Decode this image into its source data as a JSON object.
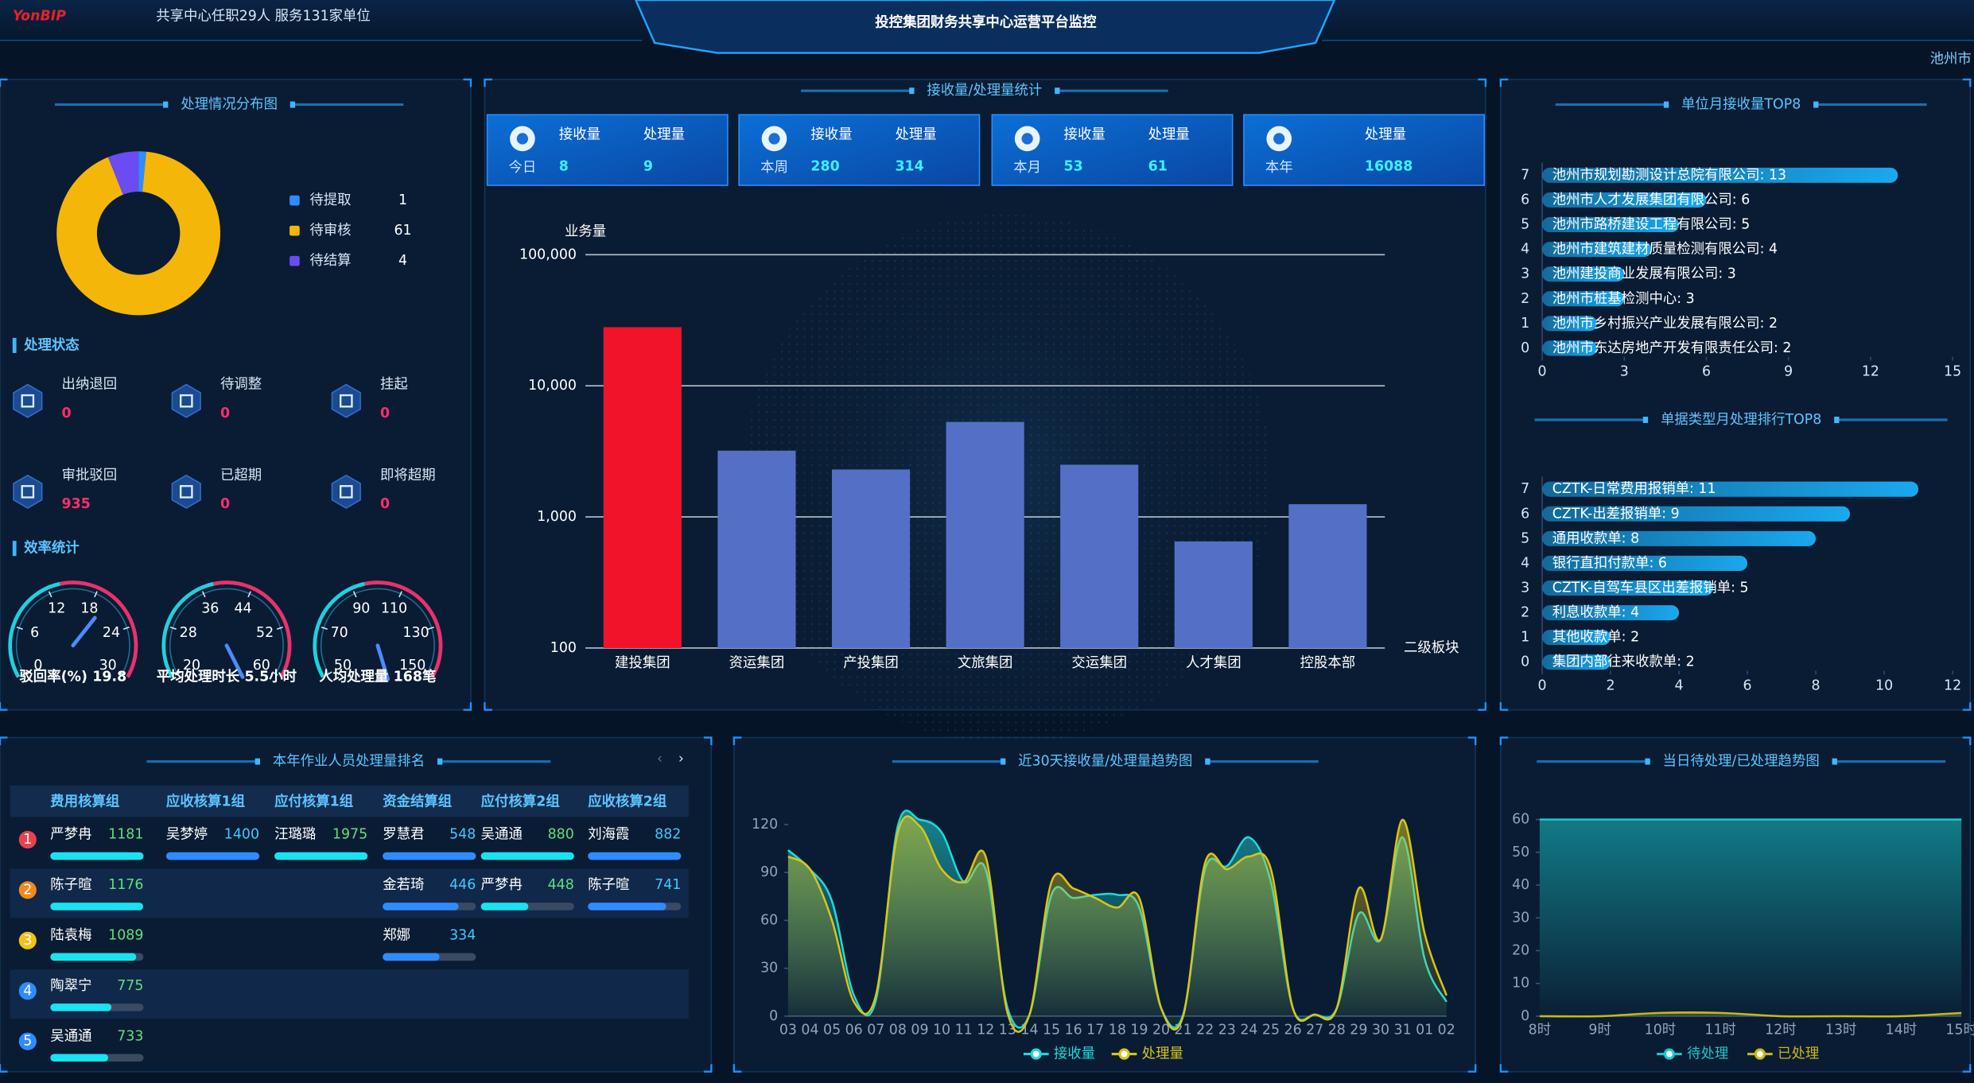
{
  "header": {
    "logo": "YonBIP",
    "info": "共享中心任职29人 服务131家单位",
    "title": "投控集团财务共享中心运营平台监控",
    "region": "池州市"
  },
  "status": {
    "title": "处理状态",
    "items": [
      {
        "label": "出纳退回",
        "value": 0
      },
      {
        "label": "待调整",
        "value": 0
      },
      {
        "label": "挂起",
        "value": 0
      },
      {
        "label": "审批驳回",
        "value": 935
      },
      {
        "label": "已超期",
        "value": 0
      },
      {
        "label": "即将超期",
        "value": 0
      }
    ]
  },
  "efficiency": {
    "title": "效率统计"
  },
  "stats": {
    "cards": [
      {
        "period": "今日",
        "received_label": "接收量",
        "received": 8,
        "processed_label": "处理量",
        "processed": 9
      },
      {
        "period": "本周",
        "received_label": "接收量",
        "received": 280,
        "processed_label": "处理量",
        "processed": 314
      },
      {
        "period": "本月",
        "received_label": "接收量",
        "received": 53,
        "processed_label": "处理量",
        "processed": 61
      },
      {
        "period": "本年",
        "processed_label": "处理量",
        "processed": 16088
      }
    ]
  },
  "ranking": {
    "title": "本年作业人员处理量排名",
    "columns": [
      "费用核算组",
      "应收核算1组",
      "应付核算1组",
      "资金结算组",
      "应付核算2组",
      "应收核算2组"
    ],
    "ranks": [
      "1",
      "2",
      "3",
      "4",
      "5"
    ],
    "rows": [
      [
        {
          "name": "严梦冉",
          "value": 1181
        },
        {
          "name": "吴梦婷",
          "value": 1400
        },
        {
          "name": "汪璐璐",
          "value": 1975
        },
        {
          "name": "罗慧君",
          "value": 548
        },
        {
          "name": "吴通通",
          "value": 880
        },
        {
          "name": "刘海霞",
          "value": 882
        }
      ],
      [
        {
          "name": "陈子暄",
          "value": 1176
        },
        null,
        null,
        {
          "name": "金若琦",
          "value": 446
        },
        {
          "name": "严梦冉",
          "value": 448
        },
        {
          "name": "陈子暄",
          "value": 741
        }
      ],
      [
        {
          "name": "陆袁梅",
          "value": 1089
        },
        null,
        null,
        {
          "name": "郑娜",
          "value": 334
        },
        null,
        null
      ],
      [
        {
          "name": "陶翠宁",
          "value": 775
        },
        null,
        null,
        null,
        null,
        null
      ],
      [
        {
          "name": "吴通通",
          "value": 733
        },
        null,
        null,
        null,
        null,
        null
      ]
    ]
  },
  "chart_data": [
    {
      "type": "pie",
      "title": "处理情况分布图",
      "donut": true,
      "categories": [
        "待提取",
        "待审核",
        "待结算"
      ],
      "values": [
        1,
        61,
        4
      ],
      "colors": [
        "#2f8cff",
        "#f5b60a",
        "#6a4cf2"
      ]
    },
    {
      "type": "gauge",
      "name": "驳回率(%)",
      "value": 19.8,
      "ylim": [
        0,
        30
      ],
      "yticks": [
        0,
        6,
        12,
        18,
        24,
        30
      ]
    },
    {
      "type": "gauge",
      "name": "平均处理时长",
      "value": 5.5,
      "value_label": "5.5小时",
      "ylim": [
        20,
        60
      ],
      "yticks": [
        20,
        28,
        36,
        44,
        52,
        60
      ]
    },
    {
      "type": "gauge",
      "name": "人均处理量",
      "value": 168,
      "value_label": "168笔",
      "ylim": [
        50,
        150
      ],
      "yticks": [
        50,
        70,
        90,
        110,
        130,
        150
      ]
    },
    {
      "type": "bar",
      "title": "接收量/处理量统计",
      "y_label": "业务量",
      "x_label": "二级板块",
      "log_scale": true,
      "grid": true,
      "categories": [
        "建投集团",
        "资运集团",
        "产投集团",
        "文旅集团",
        "交运集团",
        "人才集团",
        "控股本部"
      ],
      "values": [
        28000,
        3200,
        2300,
        5300,
        2500,
        650,
        1250
      ],
      "colors": [
        "#f0132a",
        "#5470c6",
        "#5470c6",
        "#5470c6",
        "#5470c6",
        "#5470c6",
        "#5470c6"
      ],
      "ylim": [
        100,
        100000
      ],
      "yticks": [
        100,
        {
          "value": 1000,
          "label": "1,000"
        },
        {
          "value": 10000,
          "label": "10,000"
        },
        {
          "value": 100000,
          "label": "100,000"
        }
      ]
    },
    {
      "type": "bar",
      "horizontal": true,
      "title": "单位月接收量TOP8",
      "color": "#1aa8ef",
      "categories": [
        "7",
        "6",
        "5",
        "4",
        "3",
        "2",
        "1",
        "0"
      ],
      "values": [
        13,
        6,
        5,
        4,
        3,
        3,
        2,
        2
      ],
      "value_labels": [
        "池州市规划勘测设计总院有限公司: 13",
        "池州市人才发展集团有限公司: 6",
        "池州市路桥建设工程有限公司: 5",
        "池州市建筑建材质量检测有限公司: 4",
        "池州建投商业发展有限公司: 3",
        "池州市桩基检测中心: 3",
        "池州市乡村振兴产业发展有限公司: 2",
        "池州市东达房地产开发有限责任公司: 2"
      ],
      "xlim": [
        0,
        15
      ],
      "xticks": [
        0,
        3,
        6,
        9,
        12,
        15
      ]
    },
    {
      "type": "bar",
      "horizontal": true,
      "title": "单据类型月处理排行TOP8",
      "color": "#1aa8ef",
      "categories": [
        "7",
        "6",
        "5",
        "4",
        "3",
        "2",
        "1",
        "0"
      ],
      "values": [
        11,
        9,
        8,
        6,
        5,
        4,
        2,
        2
      ],
      "value_labels": [
        "CZTK-日常费用报销单: 11",
        "CZTK-出差报销单: 9",
        "通用收款单: 8",
        "银行直扣付款单: 6",
        "CZTK-自驾车县区出差报销单: 5",
        "利息收款单: 4",
        "其他收款单: 2",
        "集团内部往来收款单: 2"
      ],
      "xlim": [
        0,
        12
      ],
      "xticks": [
        0,
        2,
        4,
        6,
        8,
        10,
        12
      ]
    },
    {
      "type": "line",
      "area": true,
      "title": "近30天接收量/处理量趋势图",
      "categories": [
        "03",
        "04",
        "05",
        "06",
        "07",
        "08",
        "09",
        "10",
        "11",
        "12",
        "13",
        "14",
        "15",
        "16",
        "17",
        "18",
        "19",
        "20",
        "21",
        "22",
        "23",
        "24",
        "25",
        "26",
        "27",
        "28",
        "29",
        "30",
        "31",
        "01",
        "02"
      ],
      "series": [
        {
          "name": "接收量",
          "color": "#1fd8d8",
          "values": [
            104,
            92,
            72,
            13,
            10,
            119,
            123,
            115,
            84,
            92,
            5,
            1,
            76,
            74,
            76,
            76,
            68,
            5,
            1,
            92,
            94,
            112,
            84,
            5,
            1,
            5,
            64,
            48,
            112,
            36,
            9
          ]
        },
        {
          "name": "处理量",
          "color": "#d8c41a",
          "values": [
            100,
            92,
            60,
            9,
            13,
            115,
            119,
            92,
            84,
            100,
            2,
            1,
            84,
            80,
            74,
            68,
            74,
            5,
            0,
            96,
            92,
            100,
            92,
            5,
            1,
            5,
            80,
            48,
            123,
            52,
            13
          ]
        }
      ],
      "ylim": [
        0,
        120
      ],
      "yticks": [
        0,
        30,
        60,
        90,
        120
      ]
    },
    {
      "type": "line",
      "area": true,
      "title": "当日待处理/已处理趋势图",
      "categories": [
        "8时",
        "9时",
        "10时",
        "11时",
        "12时",
        "13时",
        "14时",
        "15时"
      ],
      "series": [
        {
          "name": "待处理",
          "color": "#17c9c9",
          "values": [
            60,
            60,
            60,
            60,
            60,
            60,
            60,
            60
          ]
        },
        {
          "name": "已处理",
          "color": "#c8b81a",
          "values": [
            0,
            0,
            1,
            1,
            0,
            0,
            0,
            1
          ]
        }
      ],
      "ylim": [
        0,
        60
      ],
      "yticks": [
        0,
        10,
        20,
        30,
        40,
        50,
        60
      ]
    }
  ]
}
